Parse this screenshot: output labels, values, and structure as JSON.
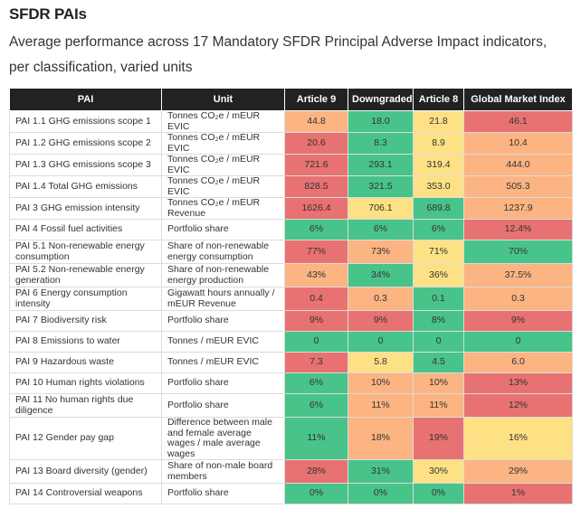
{
  "title": "SFDR PAIs",
  "subtitle": "Average performance across 17 Mandatory SFDR Principal Adverse Impact indicators, per classification, varied units",
  "colors": {
    "red": "#e87272",
    "orange": "#fbb482",
    "yellow": "#fde184",
    "green": "#48c38a",
    "header_bg": "#222222"
  },
  "table": {
    "headers": [
      "PAI",
      "Unit",
      "Article 9",
      "Downgraded",
      "Article 8",
      "Global Market Index"
    ],
    "rows": [
      {
        "pai": "PAI 1.1 GHG emissions scope 1",
        "unit": "Tonnes CO₂e / mEUR EVIC",
        "values": [
          {
            "v": "44.8",
            "c": "orange"
          },
          {
            "v": "18.0",
            "c": "green"
          },
          {
            "v": "21.8",
            "c": "yellow"
          },
          {
            "v": "46.1",
            "c": "red"
          }
        ]
      },
      {
        "pai": "PAI 1.2 GHG emissions scope 2",
        "unit": "Tonnes CO₂e / mEUR EVIC",
        "values": [
          {
            "v": "20.6",
            "c": "red"
          },
          {
            "v": "8.3",
            "c": "green"
          },
          {
            "v": "8.9",
            "c": "yellow"
          },
          {
            "v": "10.4",
            "c": "orange"
          }
        ]
      },
      {
        "pai": "PAI 1.3 GHG emissions scope 3",
        "unit": "Tonnes CO₂e / mEUR EVIC",
        "values": [
          {
            "v": "721.6",
            "c": "red"
          },
          {
            "v": "293.1",
            "c": "green"
          },
          {
            "v": "319.4",
            "c": "yellow"
          },
          {
            "v": "444.0",
            "c": "orange"
          }
        ]
      },
      {
        "pai": "PAI 1.4 Total GHG emissions",
        "unit": "Tonnes CO₂e / mEUR EVIC",
        "values": [
          {
            "v": "828.5",
            "c": "red"
          },
          {
            "v": "321.5",
            "c": "green"
          },
          {
            "v": "353.0",
            "c": "yellow"
          },
          {
            "v": "505.3",
            "c": "orange"
          }
        ]
      },
      {
        "pai": "PAI 3 GHG emission intensity",
        "unit": "Tonnes CO₂e / mEUR Revenue",
        "values": [
          {
            "v": "1626.4",
            "c": "red"
          },
          {
            "v": "706.1",
            "c": "yellow"
          },
          {
            "v": "689.8",
            "c": "green"
          },
          {
            "v": "1237.9",
            "c": "orange"
          }
        ]
      },
      {
        "pai": "PAI 4 Fossil fuel activities",
        "unit": "Portfolio share",
        "values": [
          {
            "v": "6%",
            "c": "green"
          },
          {
            "v": "6%",
            "c": "green"
          },
          {
            "v": "6%",
            "c": "green"
          },
          {
            "v": "12.4%",
            "c": "red"
          }
        ]
      },
      {
        "pai": "PAI 5.1 Non-renewable energy consumption",
        "unit": "Share of non-renewable energy consumption",
        "values": [
          {
            "v": "77%",
            "c": "red"
          },
          {
            "v": "73%",
            "c": "orange"
          },
          {
            "v": "71%",
            "c": "yellow"
          },
          {
            "v": "70%",
            "c": "green"
          }
        ]
      },
      {
        "pai": "PAI 5.2 Non-renewable energy generation",
        "unit": "Share of non-renewable energy production",
        "values": [
          {
            "v": "43%",
            "c": "orange"
          },
          {
            "v": "34%",
            "c": "green"
          },
          {
            "v": "36%",
            "c": "yellow"
          },
          {
            "v": "37.5%",
            "c": "orange"
          }
        ]
      },
      {
        "pai": "PAI 6 Energy consumption intensity",
        "unit": "Gigawatt hours annually / mEUR Revenue",
        "values": [
          {
            "v": "0.4",
            "c": "red"
          },
          {
            "v": "0.3",
            "c": "orange"
          },
          {
            "v": "0.1",
            "c": "green"
          },
          {
            "v": "0.3",
            "c": "orange"
          }
        ]
      },
      {
        "pai": "PAI 7 Biodiversity risk",
        "unit": "Portfolio share",
        "values": [
          {
            "v": "9%",
            "c": "red"
          },
          {
            "v": "9%",
            "c": "red"
          },
          {
            "v": "8%",
            "c": "green"
          },
          {
            "v": "9%",
            "c": "red"
          }
        ]
      },
      {
        "pai": "PAI 8 Emissions to water",
        "unit": "Tonnes / mEUR EVIC",
        "values": [
          {
            "v": "0",
            "c": "green"
          },
          {
            "v": "0",
            "c": "green"
          },
          {
            "v": "0",
            "c": "green"
          },
          {
            "v": "0",
            "c": "green"
          }
        ]
      },
      {
        "pai": "PAI 9 Hazardous waste",
        "unit": "Tonnes / mEUR EVIC",
        "values": [
          {
            "v": "7.3",
            "c": "red"
          },
          {
            "v": "5.8",
            "c": "yellow"
          },
          {
            "v": "4.5",
            "c": "green"
          },
          {
            "v": "6.0",
            "c": "orange"
          }
        ]
      },
      {
        "pai": "PAI 10 Human rights violations",
        "unit": "Portfolio share",
        "values": [
          {
            "v": "6%",
            "c": "green"
          },
          {
            "v": "10%",
            "c": "orange"
          },
          {
            "v": "10%",
            "c": "orange"
          },
          {
            "v": "13%",
            "c": "red"
          }
        ]
      },
      {
        "pai": "PAI 11 No human rights due diligence",
        "unit": "Portfolio share",
        "values": [
          {
            "v": "6%",
            "c": "green"
          },
          {
            "v": "11%",
            "c": "orange"
          },
          {
            "v": "11%",
            "c": "orange"
          },
          {
            "v": "12%",
            "c": "red"
          }
        ]
      },
      {
        "pai": "PAI 12 Gender pay gap",
        "unit": "Difference between male and female average wages / male average wages",
        "values": [
          {
            "v": "11%",
            "c": "green"
          },
          {
            "v": "18%",
            "c": "orange"
          },
          {
            "v": "19%",
            "c": "red"
          },
          {
            "v": "16%",
            "c": "yellow"
          }
        ]
      },
      {
        "pai": "PAI 13 Board diversity (gender)",
        "unit": "Share of non-male board members",
        "values": [
          {
            "v": "28%",
            "c": "red"
          },
          {
            "v": "31%",
            "c": "green"
          },
          {
            "v": "30%",
            "c": "yellow"
          },
          {
            "v": "29%",
            "c": "orange"
          }
        ]
      },
      {
        "pai": "PAI 14 Controversial weapons",
        "unit": "Portfolio share",
        "values": [
          {
            "v": "0%",
            "c": "green"
          },
          {
            "v": "0%",
            "c": "green"
          },
          {
            "v": "0%",
            "c": "green"
          },
          {
            "v": "1%",
            "c": "red"
          }
        ]
      }
    ]
  }
}
